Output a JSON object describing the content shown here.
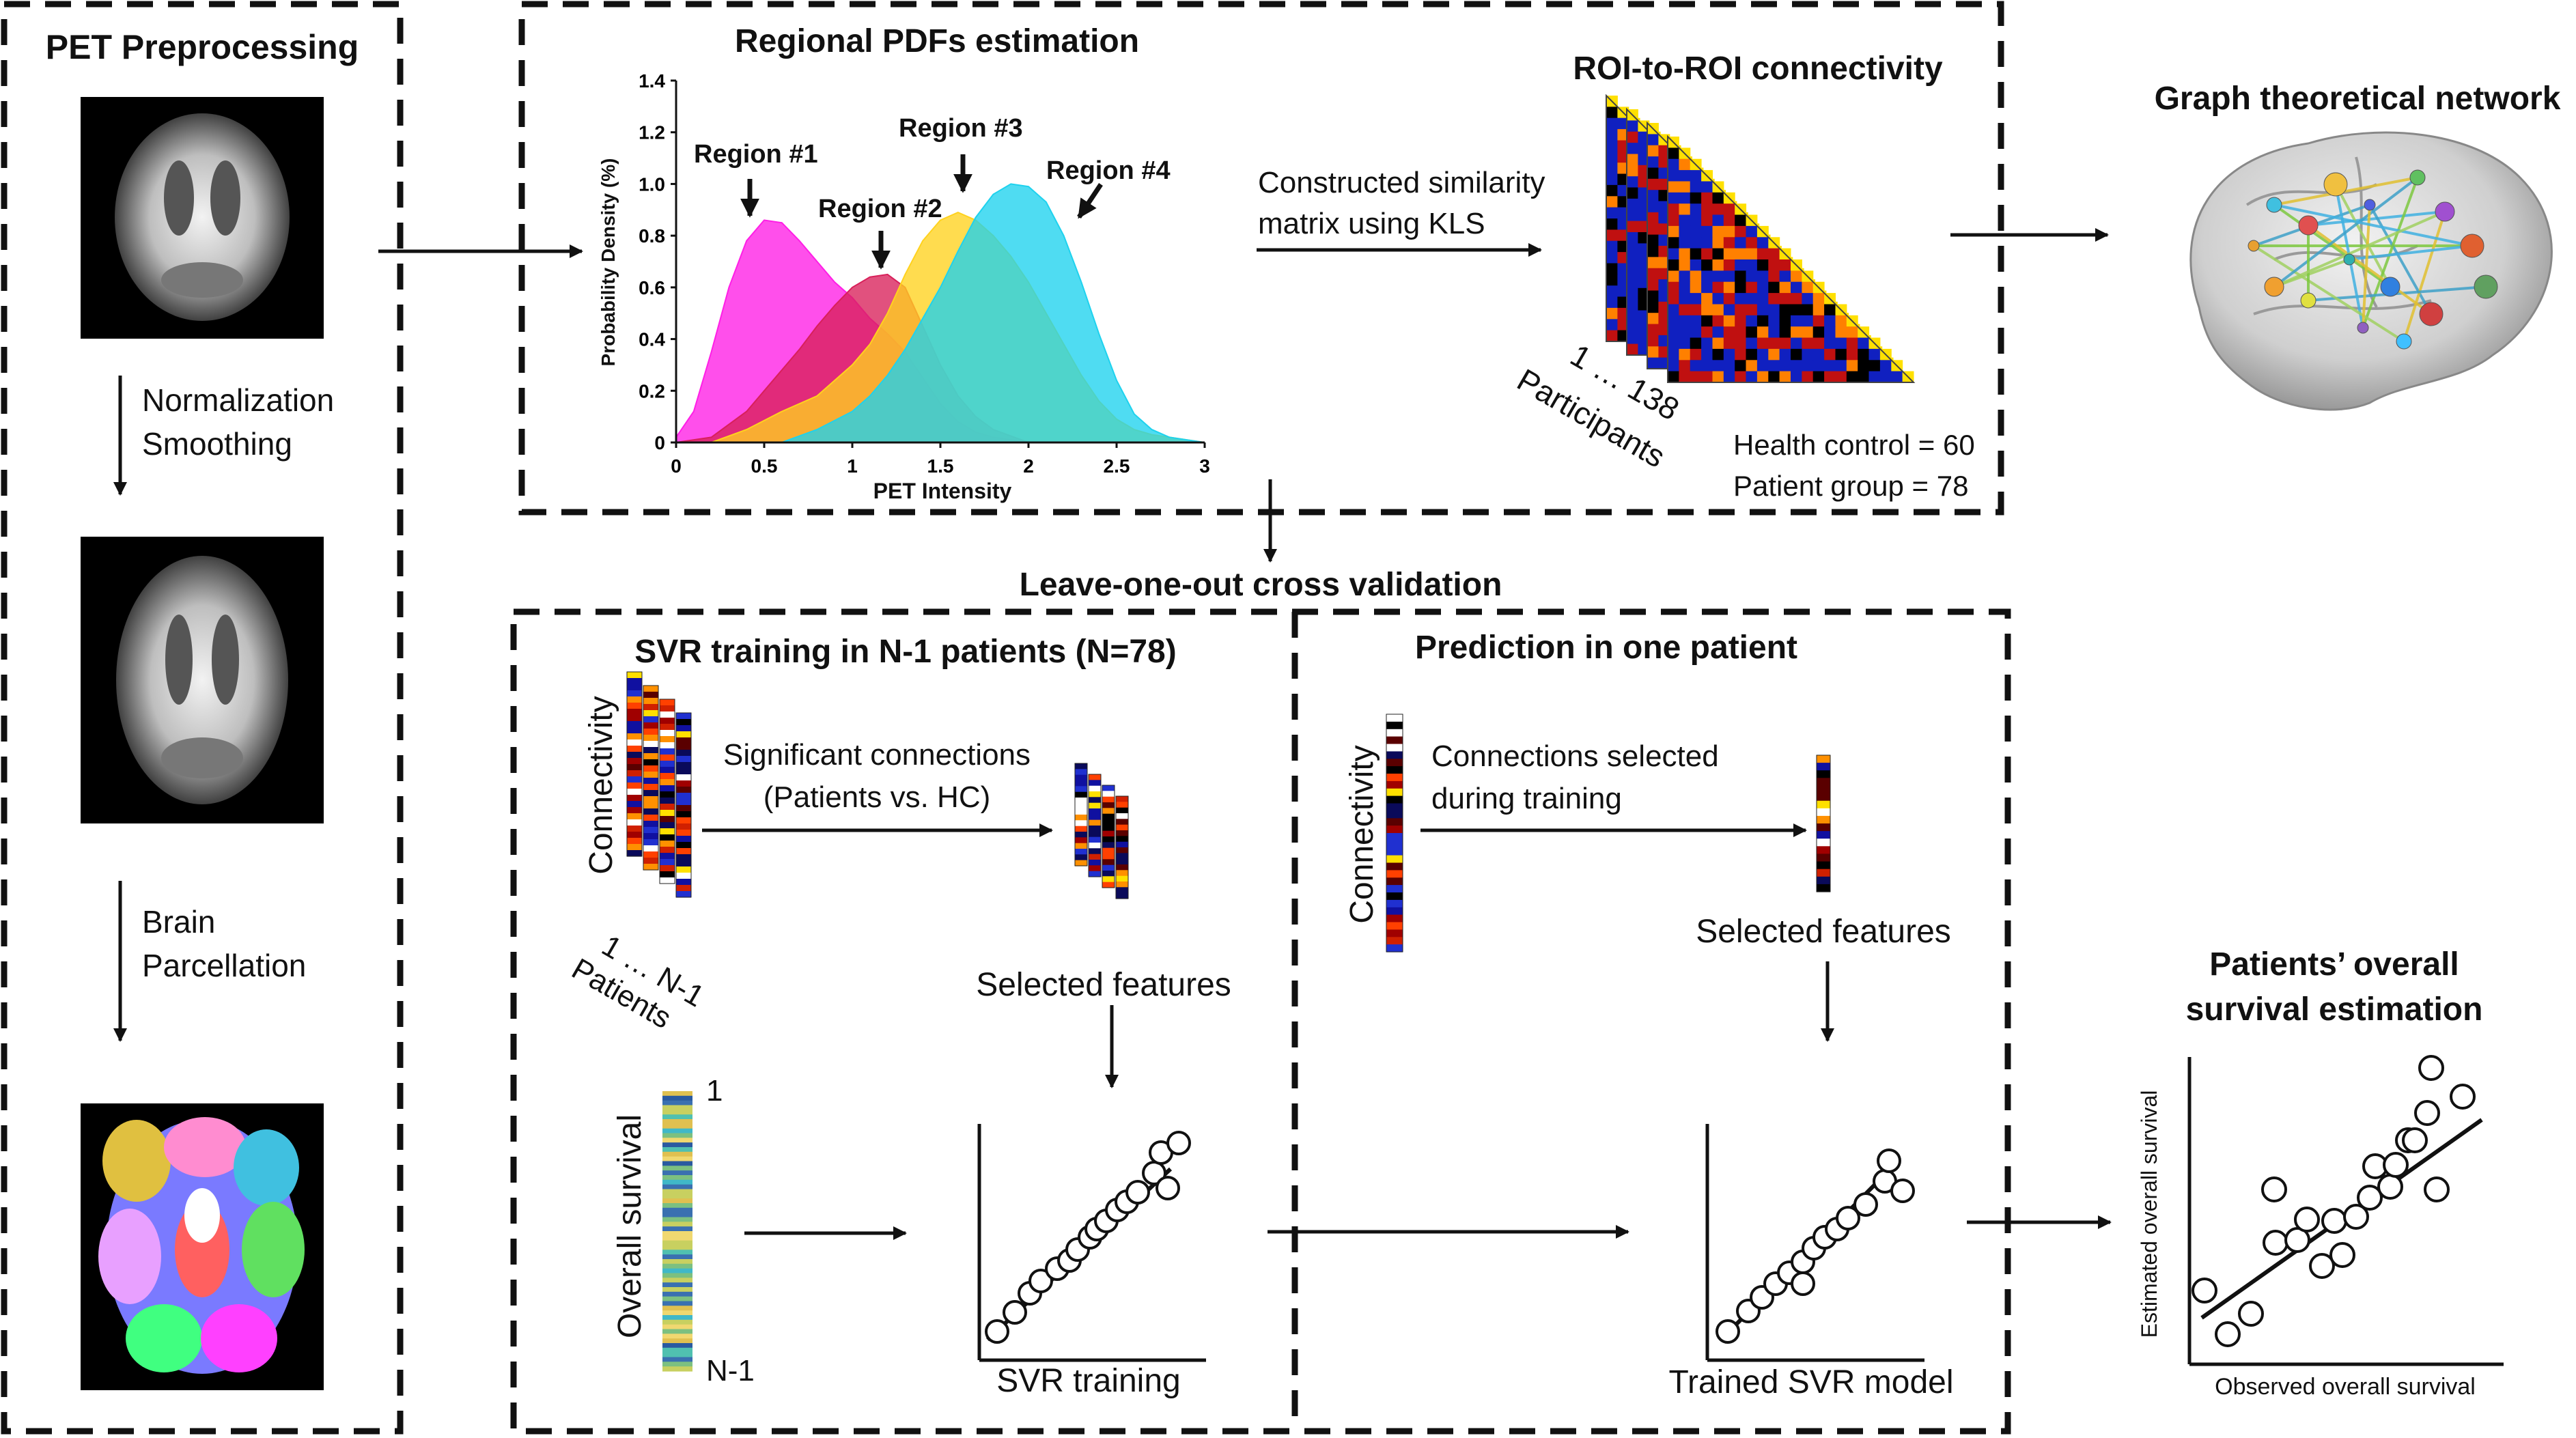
{
  "preprocessing": {
    "title": "PET Preprocessing",
    "step1_line1": "Normalization",
    "step1_line2": "Smoothing",
    "step2_line1": "Brain",
    "step2_line2": "Parcellation"
  },
  "pdf": {
    "title": "Regional PDFs estimation",
    "xlabel": "PET Intensity",
    "ylabel": "Probability Density (%)",
    "region_labels": [
      "Region #1",
      "Region #2",
      "Region #3",
      "Region #4"
    ]
  },
  "chart_data": {
    "type": "area",
    "title": "Regional PDFs estimation",
    "xlabel": "PET Intensity",
    "ylabel": "Probability Density (%)",
    "xlim": [
      0,
      3
    ],
    "ylim": [
      0,
      1.4
    ],
    "xticks": [
      "0",
      "0.5",
      "1",
      "1.5",
      "2",
      "2.5",
      "3"
    ],
    "yticks": [
      "0",
      "0.2",
      "0.4",
      "0.6",
      "0.8",
      "1.0",
      "1.2",
      "1.4"
    ],
    "series": [
      {
        "name": "Region #1",
        "color": "#ff1ee6",
        "x": [
          0.0,
          0.1,
          0.2,
          0.3,
          0.4,
          0.5,
          0.6,
          0.7,
          0.8,
          0.9,
          1.0,
          1.1,
          1.2,
          1.3,
          1.4,
          1.5,
          1.6,
          1.7,
          1.8,
          2.0
        ],
        "y": [
          0.02,
          0.12,
          0.35,
          0.6,
          0.78,
          0.86,
          0.85,
          0.78,
          0.7,
          0.62,
          0.56,
          0.48,
          0.42,
          0.35,
          0.25,
          0.15,
          0.08,
          0.04,
          0.02,
          0.0
        ]
      },
      {
        "name": "Region #2",
        "color": "#d8205a",
        "x": [
          0.0,
          0.2,
          0.4,
          0.5,
          0.6,
          0.7,
          0.8,
          0.9,
          1.0,
          1.1,
          1.2,
          1.3,
          1.4,
          1.5,
          1.6,
          1.7,
          1.8,
          2.0
        ],
        "y": [
          0.0,
          0.02,
          0.12,
          0.2,
          0.28,
          0.36,
          0.45,
          0.53,
          0.6,
          0.64,
          0.65,
          0.6,
          0.45,
          0.3,
          0.18,
          0.1,
          0.05,
          0.0
        ]
      },
      {
        "name": "Region #3",
        "color": "#ffd21e",
        "x": [
          0.2,
          0.4,
          0.6,
          0.8,
          0.9,
          1.0,
          1.1,
          1.2,
          1.3,
          1.4,
          1.5,
          1.6,
          1.7,
          1.8,
          1.9,
          2.0,
          2.1,
          2.2,
          2.3,
          2.4,
          2.5,
          2.6,
          2.7,
          2.8,
          2.9,
          3.0
        ],
        "y": [
          0.0,
          0.05,
          0.12,
          0.18,
          0.24,
          0.3,
          0.38,
          0.5,
          0.65,
          0.78,
          0.86,
          0.89,
          0.86,
          0.8,
          0.72,
          0.62,
          0.5,
          0.38,
          0.26,
          0.16,
          0.09,
          0.05,
          0.03,
          0.02,
          0.01,
          0.0
        ]
      },
      {
        "name": "Region #4",
        "color": "#1ed2ee",
        "x": [
          0.6,
          0.8,
          1.0,
          1.1,
          1.2,
          1.3,
          1.4,
          1.5,
          1.6,
          1.7,
          1.8,
          1.9,
          2.0,
          2.1,
          2.2,
          2.3,
          2.4,
          2.5,
          2.6,
          2.7,
          2.8,
          2.9,
          3.0
        ],
        "y": [
          0.0,
          0.05,
          0.12,
          0.18,
          0.26,
          0.36,
          0.48,
          0.6,
          0.74,
          0.87,
          0.96,
          1.0,
          0.99,
          0.93,
          0.8,
          0.62,
          0.42,
          0.24,
          0.11,
          0.05,
          0.02,
          0.01,
          0.0
        ]
      }
    ]
  },
  "similarity": {
    "line1": "Constructed similarity",
    "line2": "matrix using KLS"
  },
  "roi": {
    "title": "ROI-to-ROI connectivity",
    "participants_range": "1 … 138",
    "participants_label": "Participants",
    "health_control": "Health control = 60",
    "patient_group": "Patient group = 78"
  },
  "graph": {
    "title": "Graph theoretical network"
  },
  "loocv": {
    "title": "Leave-one-out cross validation"
  },
  "training": {
    "title": "SVR training in N-1 patients (N=78)",
    "connectivity_label": "Connectivity",
    "sig_line1": "Significant connections",
    "sig_line2": "(Patients vs. HC)",
    "patients_range": "1 … N-1",
    "patients_label": "Patients",
    "selected_features": "Selected features",
    "overall_survival": "Overall survival",
    "bar_top": "1",
    "bar_bottom": "N-1",
    "svr_caption": "SVR training"
  },
  "prediction": {
    "title": "Prediction in one patient",
    "connectivity_label": "Connectivity",
    "conn_line1": "Connections selected",
    "conn_line2": "during training",
    "selected_features": "Selected features",
    "model_caption": "Trained SVR model"
  },
  "survival": {
    "title_line1": "Patients’ overall",
    "title_line2": "survival estimation",
    "ylabel": "Estimated overall survival",
    "xlabel": "Observed overall survival"
  }
}
